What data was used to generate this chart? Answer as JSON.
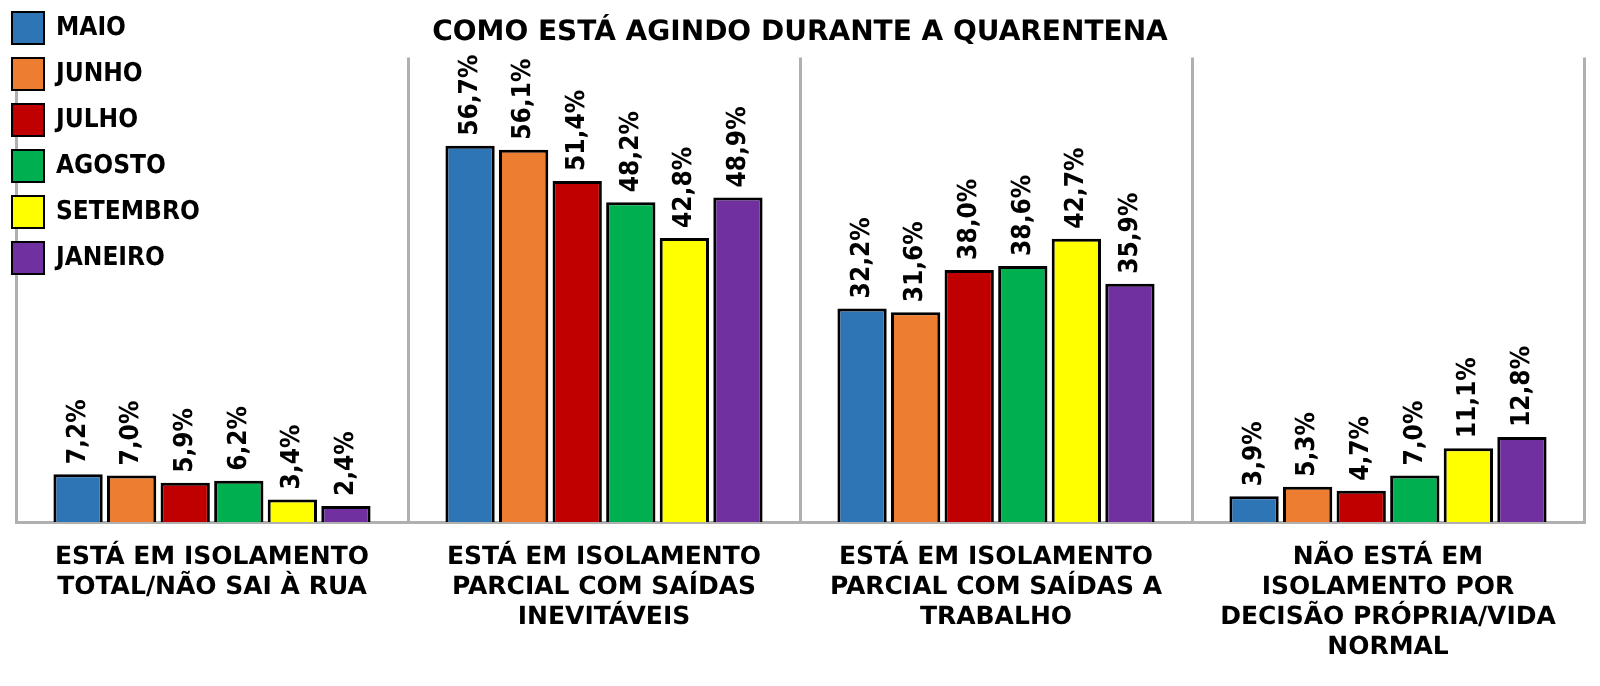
{
  "chart_data": {
    "type": "bar",
    "title": "COMO ESTÁ AGINDO DURANTE A QUARENTENA",
    "categories": [
      "ESTÁ EM ISOLAMENTO TOTAL/NÃO SAI À RUA",
      "ESTÁ EM ISOLAMENTO PARCIAL COM SAÍDAS INEVITÁVEIS",
      "ESTÁ EM ISOLAMENTO PARCIAL COM SAÍDAS A TRABALHO",
      "NÃO ESTÁ EM ISOLAMENTO POR DECISÃO PRÓPRIA/VIDA NORMAL"
    ],
    "series": [
      {
        "name": "MAIO",
        "color": "#2e75b6",
        "values": [
          7.2,
          56.7,
          32.2,
          3.9
        ],
        "value_labels": [
          "7,2%",
          "56,7%",
          "32,2%",
          "3,9%"
        ]
      },
      {
        "name": "JUNHO",
        "color": "#ed7d31",
        "values": [
          7.0,
          56.1,
          31.6,
          5.3
        ],
        "value_labels": [
          "7,0%",
          "56,1%",
          "31,6%",
          "5,3%"
        ]
      },
      {
        "name": "JULHO",
        "color": "#c00000",
        "values": [
          5.9,
          51.4,
          38.0,
          4.7
        ],
        "value_labels": [
          "5,9%",
          "51,4%",
          "38,0%",
          "4,7%"
        ]
      },
      {
        "name": "AGOSTO",
        "color": "#00b050",
        "values": [
          6.2,
          48.2,
          38.6,
          7.0
        ],
        "value_labels": [
          "6,2%",
          "48,2%",
          "38,6%",
          "7,0%"
        ]
      },
      {
        "name": "SETEMBRO",
        "color": "#ffff00",
        "values": [
          3.4,
          42.8,
          42.7,
          11.1
        ],
        "value_labels": [
          "3,4%",
          "42,8%",
          "42,7%",
          "11,1%"
        ]
      },
      {
        "name": "JANEIRO",
        "color": "#7030a0",
        "values": [
          2.4,
          48.9,
          35.9,
          12.8
        ],
        "value_labels": [
          "2,4%",
          "48,9%",
          "35,9%",
          "12,8%"
        ]
      }
    ],
    "legend": "top left",
    "grid": "x",
    "tick_labels": "x"
  }
}
